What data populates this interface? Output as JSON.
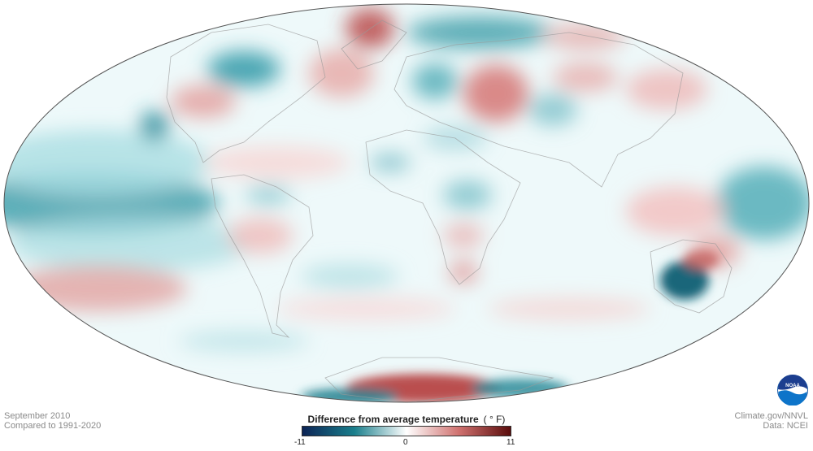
{
  "map": {
    "projection": "Mollweide",
    "subject": "Global surface temperature anomaly"
  },
  "footer": {
    "date": "September 2010",
    "baseline": "Compared to 1991-2020",
    "credit": "Climate.gov/NNVL",
    "source": "Data: NCEI"
  },
  "legend": {
    "title": "Difference from average temperature",
    "unit": "( ° F)",
    "min_label": "-11",
    "mid_label": "0",
    "max_label": "11",
    "min_value": -11,
    "max_value": 11,
    "colors": [
      "#0c2456",
      "#1a7f8c",
      "#ffffff",
      "#d07270",
      "#5a0c0c"
    ]
  },
  "logo": {
    "text": "NOAA",
    "icon": "noaa-logo-icon"
  }
}
